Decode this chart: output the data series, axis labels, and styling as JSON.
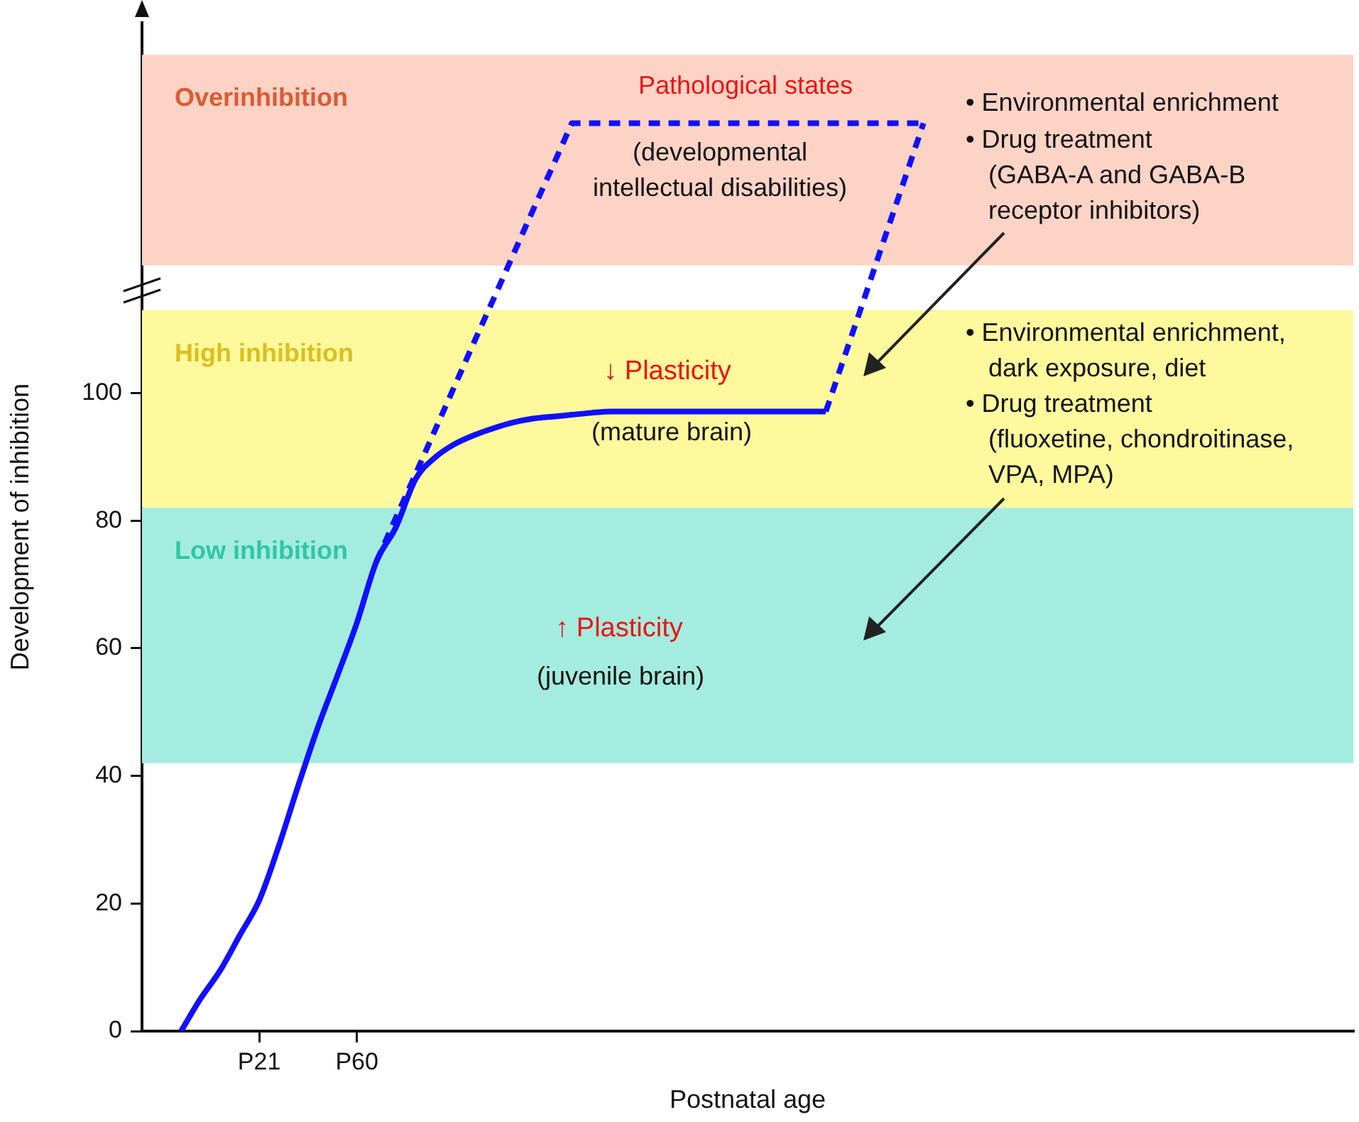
{
  "chart_data": {
    "type": "line",
    "xlabel": "Postnatal age",
    "ylabel": "Development of inhibition",
    "categories": [
      null,
      null,
      null,
      null,
      null,
      null,
      "P21",
      null,
      null,
      null,
      null,
      "P60",
      null,
      null,
      null,
      null,
      null,
      null,
      null,
      null,
      null,
      null,
      null,
      null,
      null,
      null,
      null,
      null,
      null,
      null,
      null,
      null,
      null,
      null,
      null,
      null,
      null,
      null,
      null,
      null,
      null,
      null,
      null,
      null,
      null,
      null,
      null,
      null,
      null,
      null,
      null,
      null,
      null,
      null,
      null,
      null,
      null,
      null,
      null,
      null,
      null,
      null,
      null
    ],
    "ylim": [
      0,
      158
    ],
    "yticks": [
      0,
      20,
      40,
      60,
      80,
      100
    ],
    "series": [
      {
        "color": "#1010ff",
        "line_style": "solid",
        "values": [
          null,
          null,
          0,
          5.1,
          9.5,
          15,
          20.5,
          29,
          38.5,
          47.6,
          55.7,
          64,
          73.6,
          79,
          86.5,
          89.9,
          92,
          93.4,
          94.5,
          95.4,
          96,
          96.3,
          96.6,
          96.9,
          97.1,
          97.1,
          97.1,
          97.1,
          97.1,
          97.1,
          97.1,
          97.1,
          97.1,
          97.1,
          97.1,
          97.1,
          null,
          null,
          null,
          null,
          null,
          null,
          null,
          null,
          null,
          null,
          null,
          null,
          null,
          null,
          null,
          null,
          null,
          null,
          null,
          null,
          null,
          null,
          null,
          null,
          null,
          null,
          null
        ]
      },
      {
        "color": "#1010ff",
        "line_style": "dashed",
        "values": [
          null,
          null,
          null,
          null,
          null,
          null,
          null,
          null,
          null,
          null,
          null,
          null,
          73.6,
          80.5,
          87.3,
          94.2,
          101.1,
          108,
          114.8,
          121.7,
          128.6,
          135.4,
          142.3,
          142.3,
          142.3,
          142.3,
          142.3,
          142.3,
          142.3,
          142.3,
          142.3,
          142.3,
          142.3,
          142.3,
          142.3,
          142.3,
          142.3,
          142.3,
          142.3,
          142.3,
          142.3,
          null,
          null,
          null,
          null,
          null,
          null,
          null,
          null,
          null,
          null,
          null,
          null,
          null,
          null,
          null,
          null,
          null,
          null,
          null,
          null,
          null,
          null
        ]
      },
      {
        "color": "#1010ff",
        "line_style": "dashed",
        "values": [
          null,
          null,
          null,
          null,
          null,
          null,
          null,
          null,
          null,
          null,
          null,
          null,
          null,
          null,
          null,
          null,
          null,
          null,
          null,
          null,
          null,
          null,
          null,
          null,
          null,
          null,
          null,
          null,
          null,
          null,
          null,
          null,
          null,
          null,
          null,
          97.1,
          106.1,
          115.1,
          124.2,
          133.2,
          142.3,
          null,
          null,
          null,
          null,
          null,
          null,
          null,
          null,
          null,
          null,
          null,
          null,
          null,
          null,
          null,
          null,
          null,
          null,
          null,
          null,
          null,
          null
        ]
      }
    ],
    "bands": [
      {
        "axis": "y",
        "from": 120,
        "to": 153,
        "label": "Overinhibition",
        "color": "#fdd3c5"
      },
      {
        "axis": "y",
        "from": 82,
        "to": 113,
        "label": "High inhibition",
        "color": "#fef99c"
      },
      {
        "axis": "y",
        "from": 42,
        "to": 82,
        "label": "Low inhibition",
        "color": "#a4ece0"
      }
    ],
    "annotations": [
      "Pathological states",
      "(developmental\nintellectual disabilities)",
      "↓ Plasticity",
      "(mature brain)",
      "↑ Plasticity",
      "(juvenile brain)",
      "• Environmental enrichment",
      "• Drug treatment\n(GABA-A and GABA-B\nreceptor inhibitors)",
      "• Environmental enrichment,\ndark exposure, diet",
      "• Drug treatment\n(fluoxetine, chondroitinase,\nVPA, MPA)"
    ],
    "grid": false,
    "legend": false,
    "marker": "none"
  }
}
